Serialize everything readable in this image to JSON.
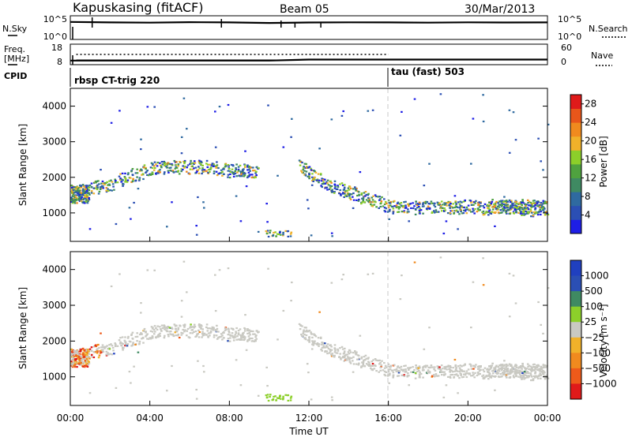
{
  "header": {
    "station": "Kapuskasing (fitACF)",
    "beam": "Beam 05",
    "date": "30/Mar/2013"
  },
  "noise_panel": {
    "left_label": "N.Sky",
    "left_ticks": [
      "10^5",
      "10^0"
    ],
    "right_ticks": [
      "10^5",
      "10^0"
    ],
    "right_label": "N.Search"
  },
  "freq_panel": {
    "left_label_line1": "Freq.",
    "left_label_line2": "[MHz]",
    "left_ticks": [
      "18",
      "8"
    ],
    "right_ticks": [
      "60",
      "0"
    ],
    "right_label": "Nave"
  },
  "cpid": {
    "label": "CPID",
    "segments": [
      "rbsp CT-trig 220",
      "tau (fast) 503"
    ]
  },
  "colors": {
    "gray": "#c9c9c2",
    "power": [
      "#1e1ee6",
      "#2b4fb4",
      "#2f6aa0",
      "#3f8a62",
      "#4fa23f",
      "#8ccf2a",
      "#f0b12a",
      "#f08a1e",
      "#e8561a",
      "#e01a1a"
    ],
    "velocity": [
      "#e01a1a",
      "#ee5a1a",
      "#f08a1e",
      "#f0b12a",
      "#c9c9c2",
      "#8ccf2a",
      "#3f8a62",
      "#2b4fb4",
      "#2040c0"
    ]
  },
  "chart_data": [
    {
      "type": "line",
      "panel": "noise",
      "x": [
        0,
        2,
        4,
        6,
        8,
        10,
        12,
        14,
        16,
        18,
        20,
        22,
        24
      ],
      "series": [
        {
          "name": "N.Sky",
          "values": [
            5000,
            4000,
            3500,
            4500,
            4000,
            3000,
            3800,
            4200,
            4000,
            3600,
            4100,
            3900,
            4000
          ]
        }
      ]
    },
    {
      "type": "line",
      "panel": "frequency",
      "x": [
        0,
        8,
        10,
        12,
        16,
        20,
        24
      ],
      "series": [
        {
          "name": "Freq.",
          "values": [
            10.0,
            10.0,
            10.0,
            10.5,
            10.5,
            10.5,
            10.5
          ]
        },
        {
          "name": "Nave",
          "values": [
            30,
            30,
            30,
            30,
            0,
            0,
            0
          ]
        }
      ]
    },
    {
      "type": "scatter",
      "panel": "power",
      "xlabel": "",
      "ylabel": "Slant Range [km]",
      "xlim": [
        0,
        24
      ],
      "ylim": [
        200,
        4500
      ],
      "yticks": [
        1000,
        2000,
        3000,
        4000
      ],
      "colorbar": {
        "label": "Power [dB]",
        "ticks": [
          4,
          8,
          12,
          16,
          20,
          24,
          28
        ],
        "range": [
          0,
          30
        ]
      },
      "series": [
        {
          "name": "",
          "x": [
            0.0,
            0.5,
            1.0,
            1.5,
            2.0,
            2.5,
            3.0,
            3.5,
            4.0,
            4.5,
            5.0,
            5.5,
            6.0,
            6.5,
            7.0,
            7.5,
            8.0,
            8.5,
            9.0,
            9.5
          ],
          "values": [
            1600,
            1600,
            1700,
            1750,
            1800,
            1950,
            2050,
            2150,
            2250,
            2300,
            2300,
            2300,
            2300,
            2320,
            2300,
            2250,
            2200,
            2200,
            2200,
            2150
          ]
        },
        {
          "name": "",
          "x": [
            11.5,
            12.0,
            12.5,
            13.0,
            13.5,
            14.0,
            14.5,
            15.0,
            15.5,
            16.0,
            17.0,
            18.0,
            19.0,
            20.0,
            21.0,
            22.0,
            23.0,
            24.0
          ],
          "values": [
            2400,
            2150,
            1950,
            1800,
            1700,
            1600,
            1500,
            1400,
            1300,
            1200,
            1150,
            1200,
            1150,
            1200,
            1150,
            1200,
            1100,
            1150
          ]
        }
      ]
    },
    {
      "type": "scatter",
      "panel": "velocity",
      "xlabel": "Time UT",
      "ylabel": "Slant Range [km]",
      "xlim": [
        0,
        24
      ],
      "ylim": [
        200,
        4500
      ],
      "xticks": [
        "00:00",
        "04:00",
        "08:00",
        "12:00",
        "16:00",
        "20:00",
        "00:00"
      ],
      "yticks": [
        1000,
        2000,
        3000,
        4000
      ],
      "colorbar": {
        "label": "Velocity [m s⁻¹]",
        "ticks": [
          "1000",
          "500",
          "100",
          "25",
          "−25",
          "−100",
          "−500",
          "−1000"
        ]
      }
    }
  ]
}
